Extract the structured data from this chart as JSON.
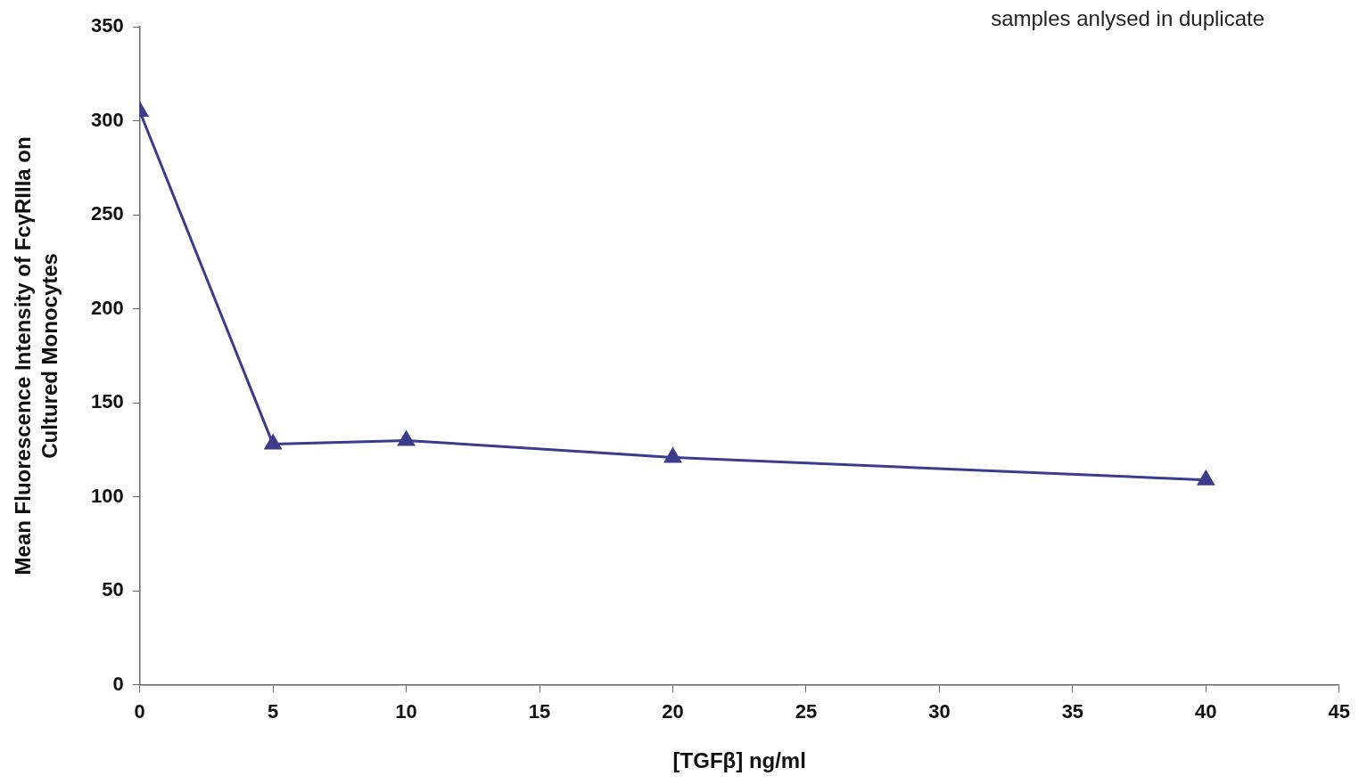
{
  "chart_data": {
    "type": "line",
    "xlabel": "[TGFβ] ng/ml",
    "ylabel": "Mean Fluorescence Intensity of FcγRIIIa on\nCultured Monocytes",
    "annotations": [
      "samples anlysed in duplicate"
    ],
    "x": [
      0,
      5,
      10,
      20,
      40
    ],
    "series": [
      {
        "color": "#3c3c8c",
        "values": [
          305,
          128,
          130,
          121,
          109
        ]
      }
    ],
    "xlim": [
      0,
      45
    ],
    "xticks": [
      0,
      5,
      10,
      15,
      20,
      25,
      30,
      35,
      40,
      45
    ],
    "ylim": [
      0,
      350
    ],
    "yticks": [
      0,
      50,
      100,
      150,
      200,
      250,
      300,
      350
    ],
    "grid": false,
    "legend": false,
    "marker": "triangle",
    "line_style": "solid"
  }
}
